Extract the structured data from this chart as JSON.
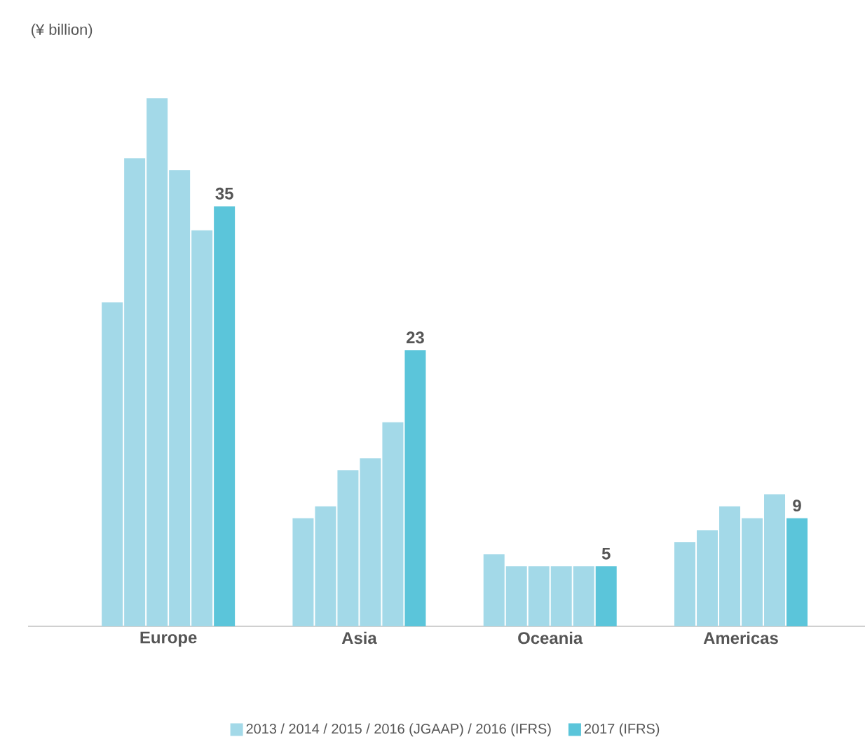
{
  "chart_data": {
    "type": "bar",
    "ylabel": "(¥ billion)",
    "categories": [
      "Europe",
      "Asia",
      "Oceania",
      "Americas"
    ],
    "series": [
      {
        "name": "2013 / 2014 / 2015 / 2016 (JGAAP) / 2016 (IFRS)",
        "color": "#a3d9e8",
        "values": [
          27,
          9,
          6,
          7
        ]
      },
      {
        "color": "#a3d9e8",
        "values": [
          39,
          10,
          5,
          8
        ]
      },
      {
        "color": "#a3d9e8",
        "values": [
          44,
          13,
          5,
          10
        ]
      },
      {
        "color": "#a3d9e8",
        "values": [
          38,
          14,
          5,
          9
        ]
      },
      {
        "color": "#a3d9e8",
        "values": [
          33,
          17,
          5,
          11
        ]
      },
      {
        "name": "2017 (IFRS)",
        "color": "#5bc5da",
        "values": [
          35,
          23,
          5,
          9
        ],
        "value_labels": [
          "35",
          "23",
          "5",
          "9"
        ]
      }
    ],
    "tick_labels": "x",
    "legend": "bottom"
  }
}
